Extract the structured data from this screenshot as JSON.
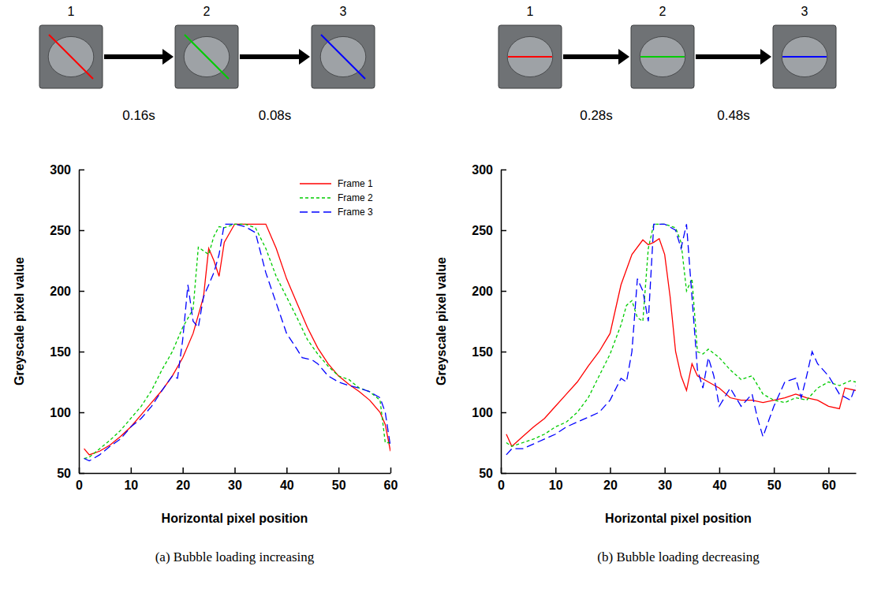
{
  "chart_data": [
    {
      "type": "line",
      "title": "(a) Bubble loading increasing",
      "x_label": "Horizontal pixel position",
      "y_label": "Greyscale pixel value",
      "frames": [
        "1",
        "2",
        "3"
      ],
      "intervals": [
        "0.16s",
        "0.08s"
      ],
      "xlim": [
        0,
        60
      ],
      "xticks": [
        0,
        10,
        20,
        30,
        40,
        50,
        60
      ],
      "ylim": [
        50,
        300
      ],
      "yticks": [
        50,
        100,
        150,
        200,
        250,
        300
      ],
      "legend": "upper right",
      "series": [
        {
          "name": "Frame 1",
          "color": "#ff0000",
          "line_style": "solid",
          "x": [
            1,
            2,
            4,
            6,
            8,
            10,
            12,
            14,
            16,
            18,
            20,
            22,
            24,
            25,
            26,
            27,
            28,
            30,
            32,
            34,
            36,
            38,
            40,
            42,
            44,
            46,
            48,
            50,
            52,
            54,
            56,
            58,
            59,
            60
          ],
          "values": [
            70,
            65,
            68,
            73,
            80,
            88,
            98,
            108,
            118,
            130,
            145,
            165,
            195,
            235,
            225,
            212,
            240,
            255,
            255,
            255,
            255,
            235,
            210,
            190,
            170,
            153,
            140,
            130,
            123,
            117,
            110,
            100,
            90,
            68
          ]
        },
        {
          "name": "Frame 2",
          "color": "#00cc00",
          "line_style": "dashed",
          "x": [
            1,
            2,
            4,
            6,
            8,
            10,
            12,
            14,
            16,
            18,
            20,
            22,
            23,
            25,
            26,
            27,
            28,
            30,
            32,
            34,
            36,
            38,
            40,
            42,
            44,
            46,
            48,
            50,
            52,
            54,
            56,
            58,
            59,
            60
          ],
          "values": [
            62,
            63,
            70,
            77,
            85,
            95,
            105,
            118,
            135,
            150,
            170,
            185,
            236,
            230,
            245,
            253,
            252,
            255,
            255,
            252,
            235,
            212,
            195,
            178,
            160,
            148,
            138,
            130,
            127,
            120,
            117,
            110,
            75,
            75
          ]
        },
        {
          "name": "Frame 3",
          "color": "#0000ff",
          "line_style": "longdash",
          "x": [
            1,
            2,
            4,
            6,
            8,
            10,
            12,
            14,
            16,
            18,
            19,
            20,
            21,
            22,
            23,
            24,
            26,
            27,
            28,
            30,
            32,
            34,
            36,
            38,
            40,
            42,
            43,
            45,
            46,
            48,
            50,
            52,
            54,
            56,
            58,
            59,
            60
          ],
          "values": [
            62,
            60,
            65,
            72,
            78,
            88,
            95,
            105,
            118,
            130,
            128,
            160,
            205,
            175,
            170,
            195,
            215,
            230,
            255,
            255,
            253,
            248,
            215,
            190,
            165,
            152,
            145,
            143,
            140,
            130,
            125,
            122,
            120,
            117,
            112,
            100,
            72
          ]
        }
      ]
    },
    {
      "type": "line",
      "title": "(b) Bubble loading decreasing",
      "x_label": "Horizontal pixel position",
      "y_label": "Greyscale pixel value",
      "frames": [
        "1",
        "2",
        "3"
      ],
      "intervals": [
        "0.28s",
        "0.48s"
      ],
      "xlim": [
        0,
        65
      ],
      "xticks": [
        0,
        10,
        20,
        30,
        40,
        50,
        60
      ],
      "ylim": [
        50,
        300
      ],
      "yticks": [
        50,
        100,
        150,
        200,
        250,
        300
      ],
      "series": [
        {
          "color": "#ff0000",
          "line_style": "solid",
          "x": [
            1,
            2,
            3,
            4,
            6,
            8,
            10,
            12,
            14,
            16,
            18,
            20,
            22,
            24,
            26,
            27,
            28,
            29,
            30,
            31,
            32,
            33,
            34,
            35,
            36,
            38,
            40,
            42,
            44,
            46,
            48,
            50,
            52,
            54,
            56,
            58,
            60,
            62,
            63,
            65
          ],
          "values": [
            82,
            72,
            76,
            80,
            88,
            95,
            105,
            115,
            125,
            138,
            150,
            165,
            205,
            230,
            242,
            238,
            240,
            243,
            230,
            195,
            150,
            130,
            118,
            140,
            130,
            125,
            120,
            112,
            110,
            110,
            108,
            110,
            112,
            115,
            112,
            110,
            105,
            103,
            120,
            118
          ]
        },
        {
          "color": "#00cc00",
          "line_style": "dashed",
          "x": [
            1,
            2,
            4,
            6,
            8,
            10,
            12,
            14,
            16,
            18,
            20,
            22,
            23,
            24,
            25,
            26,
            27,
            28,
            30,
            32,
            33,
            34,
            35,
            36,
            37,
            38,
            40,
            42,
            44,
            46,
            48,
            50,
            52,
            54,
            56,
            58,
            60,
            62,
            64,
            65
          ],
          "values": [
            75,
            72,
            75,
            78,
            82,
            88,
            92,
            100,
            112,
            130,
            148,
            172,
            188,
            192,
            178,
            175,
            235,
            255,
            255,
            252,
            240,
            200,
            210,
            150,
            148,
            152,
            145,
            135,
            127,
            130,
            115,
            110,
            108,
            112,
            110,
            120,
            125,
            122,
            126,
            125
          ]
        },
        {
          "color": "#0000ff",
          "line_style": "longdash",
          "x": [
            1,
            2,
            4,
            6,
            8,
            10,
            12,
            14,
            16,
            18,
            20,
            22,
            23,
            24,
            25,
            26,
            27,
            28,
            30,
            32,
            33,
            34,
            35,
            36,
            37,
            38,
            39,
            40,
            42,
            44,
            46,
            47,
            48,
            50,
            52,
            54,
            55,
            56,
            57,
            58,
            60,
            62,
            64,
            65
          ],
          "values": [
            65,
            70,
            70,
            74,
            78,
            82,
            88,
            92,
            96,
            100,
            110,
            128,
            125,
            150,
            210,
            200,
            175,
            255,
            255,
            250,
            235,
            255,
            195,
            135,
            120,
            145,
            130,
            105,
            120,
            105,
            115,
            95,
            80,
            105,
            125,
            128,
            112,
            130,
            150,
            140,
            130,
            115,
            110,
            122
          ]
        }
      ]
    }
  ]
}
